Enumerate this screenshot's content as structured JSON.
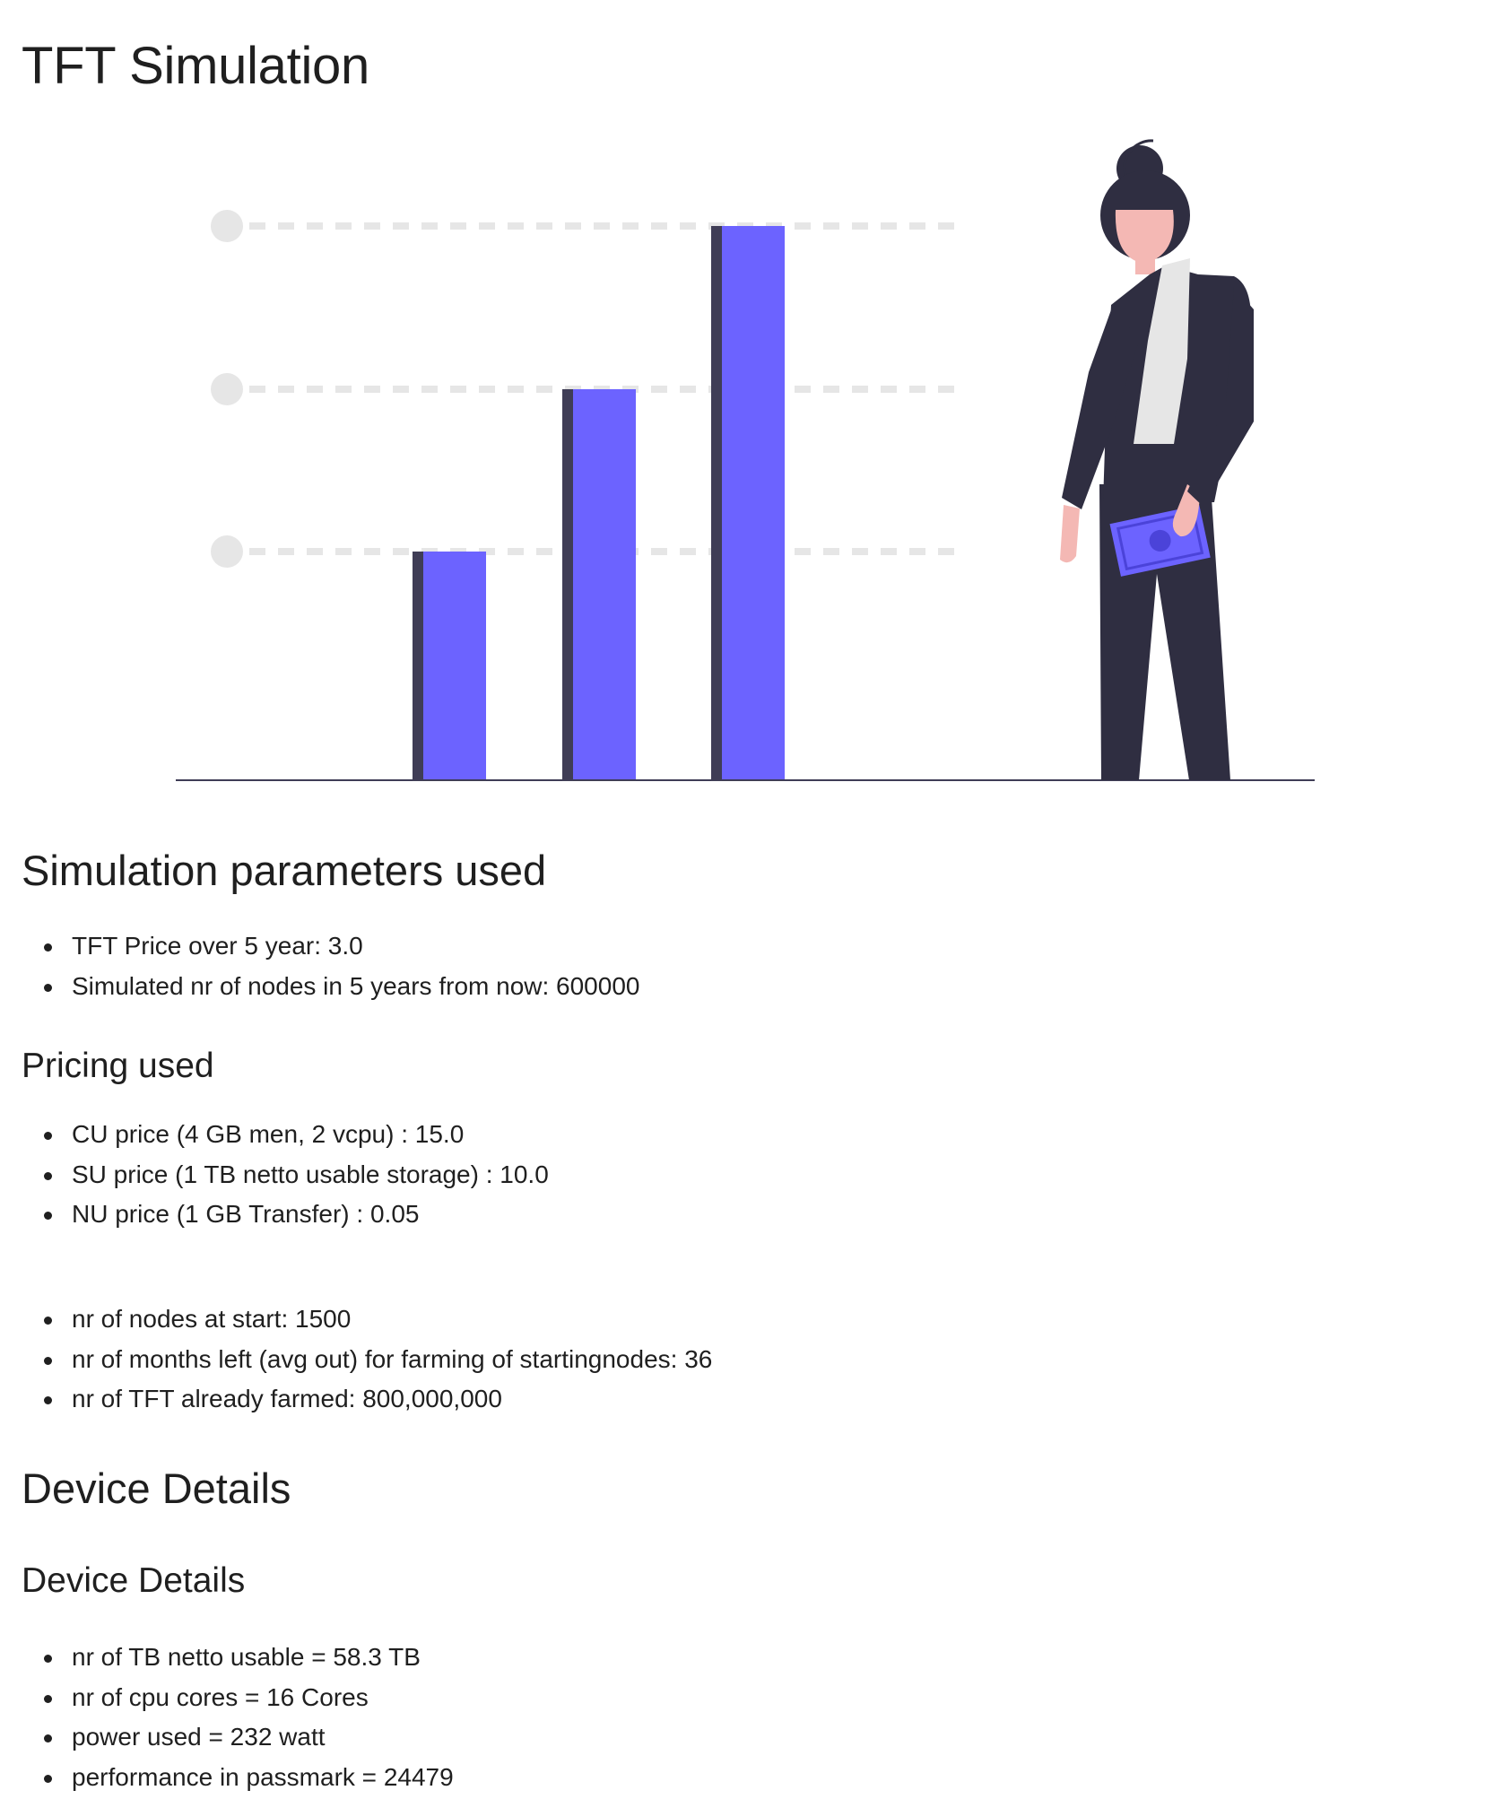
{
  "page": {
    "title": "TFT Simulation"
  },
  "illustration": {
    "name": "bar-chart-with-woman-holding-money",
    "colors": {
      "bar": "#6c63ff",
      "bar_shadow": "#3f3d56",
      "guide": "#e6e6e6",
      "figure_dark": "#2f2e41",
      "skin": "#f4b8b4",
      "shirt": "#e6e6e6",
      "baseline": "#3f3d56"
    }
  },
  "simulation": {
    "heading": "Simulation parameters used",
    "items": [
      "TFT Price over 5 year: 3.0",
      "Simulated nr of nodes in 5 years from now: 600000"
    ]
  },
  "pricing": {
    "heading": "Pricing used",
    "items": [
      "CU price (4 GB men, 2 vcpu) : 15.0",
      "SU price (1 TB netto usable storage) : 10.0",
      "NU price (1 GB Transfer) : 0.05"
    ]
  },
  "nodes": {
    "items": [
      "nr of nodes at start: 1500",
      "nr of months left (avg out) for farming of startingnodes: 36",
      "nr of TFT already farmed: 800,000,000"
    ]
  },
  "device": {
    "heading": "Device Details",
    "subheading": "Device Details",
    "items": [
      "nr of TB netto usable = 58.3 TB",
      "nr of cpu cores = 16 Cores",
      "power used = 232 watt",
      "performance in passmark = 24479"
    ]
  }
}
